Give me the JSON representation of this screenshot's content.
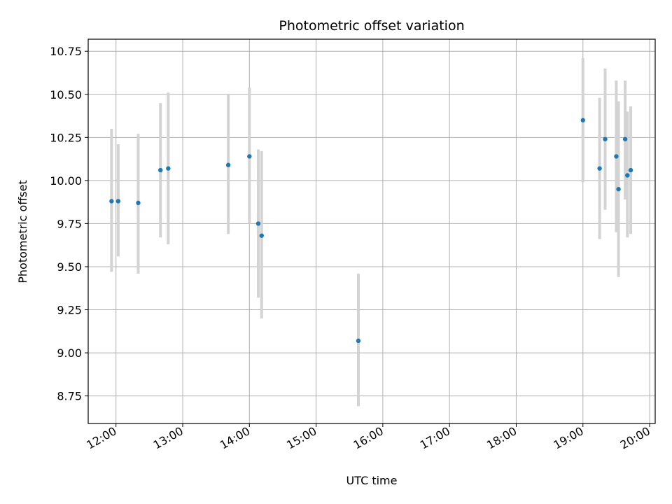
{
  "chart_data": {
    "type": "scatter",
    "title": "Photometric offset variation",
    "xlabel": "UTC time",
    "ylabel": "Photometric offset",
    "xlim": [
      "11:35",
      "20:05"
    ],
    "ylim": [
      8.59,
      10.82
    ],
    "grid": true,
    "x_ticks": [
      "12:00",
      "13:00",
      "14:00",
      "15:00",
      "16:00",
      "17:00",
      "18:00",
      "19:00",
      "20:00"
    ],
    "y_ticks": [
      "8.75",
      "9.00",
      "9.25",
      "9.50",
      "9.75",
      "10.00",
      "10.25",
      "10.50",
      "10.75"
    ],
    "colors": {
      "point": "#1f77b4",
      "errorbar": "#d3d3d3",
      "grid": "#b0b0b0"
    },
    "points": [
      {
        "x": "11:56",
        "y": 9.88,
        "yerr_low": 9.47,
        "yerr_high": 10.3
      },
      {
        "x": "12:02",
        "y": 9.88,
        "yerr_low": 9.56,
        "yerr_high": 10.21
      },
      {
        "x": "12:20",
        "y": 9.87,
        "yerr_low": 9.46,
        "yerr_high": 10.27
      },
      {
        "x": "12:40",
        "y": 10.06,
        "yerr_low": 9.67,
        "yerr_high": 10.45
      },
      {
        "x": "12:47",
        "y": 10.07,
        "yerr_low": 9.63,
        "yerr_high": 10.51
      },
      {
        "x": "13:41",
        "y": 10.09,
        "yerr_low": 9.69,
        "yerr_high": 10.5
      },
      {
        "x": "14:00",
        "y": 10.14,
        "yerr_low": 9.75,
        "yerr_high": 10.54
      },
      {
        "x": "14:08",
        "y": 9.75,
        "yerr_low": 9.32,
        "yerr_high": 10.18
      },
      {
        "x": "14:11",
        "y": 9.68,
        "yerr_low": 9.2,
        "yerr_high": 10.17
      },
      {
        "x": "15:38",
        "y": 9.07,
        "yerr_low": 8.69,
        "yerr_high": 9.46
      },
      {
        "x": "19:00",
        "y": 10.35,
        "yerr_low": 9.99,
        "yerr_high": 10.71
      },
      {
        "x": "19:15",
        "y": 10.07,
        "yerr_low": 9.66,
        "yerr_high": 10.48
      },
      {
        "x": "19:20",
        "y": 10.24,
        "yerr_low": 9.83,
        "yerr_high": 10.65
      },
      {
        "x": "19:30",
        "y": 10.14,
        "yerr_low": 9.7,
        "yerr_high": 10.58
      },
      {
        "x": "19:32",
        "y": 9.95,
        "yerr_low": 9.44,
        "yerr_high": 10.46
      },
      {
        "x": "19:38",
        "y": 10.24,
        "yerr_low": 9.89,
        "yerr_high": 10.58
      },
      {
        "x": "19:40",
        "y": 10.03,
        "yerr_low": 9.67,
        "yerr_high": 10.4
      },
      {
        "x": "19:43",
        "y": 10.06,
        "yerr_low": 9.69,
        "yerr_high": 10.43
      }
    ]
  }
}
